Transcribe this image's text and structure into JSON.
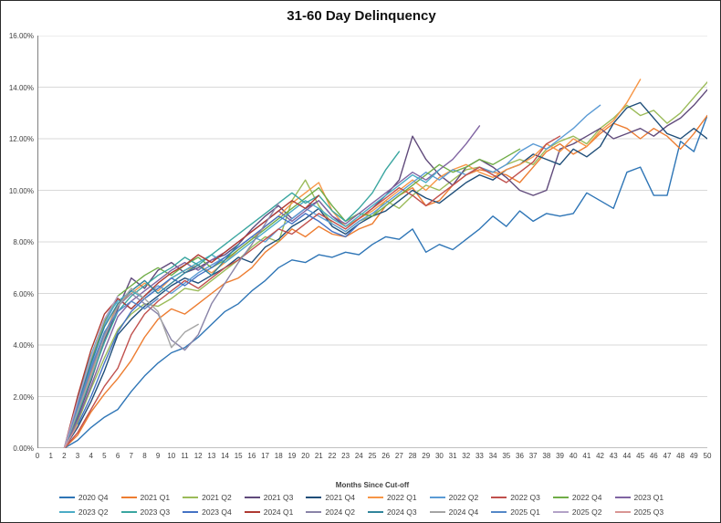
{
  "chart_data": {
    "type": "line",
    "title": "31-60 Day Delinquency",
    "xlabel": "Months Since Cut-off",
    "ylabel": "",
    "xlim": [
      0,
      50
    ],
    "ylim": [
      0,
      16
    ],
    "grid": "horizontal",
    "legend_position": "bottom",
    "y_ticks": [
      "0.00%",
      "2.00%",
      "4.00%",
      "6.00%",
      "8.00%",
      "10.00%",
      "12.00%",
      "14.00%",
      "16.00%"
    ],
    "x_ticks": [
      0,
      1,
      2,
      3,
      4,
      5,
      6,
      7,
      8,
      9,
      10,
      11,
      12,
      13,
      14,
      15,
      16,
      17,
      18,
      19,
      20,
      21,
      22,
      23,
      24,
      25,
      26,
      27,
      28,
      29,
      30,
      31,
      32,
      33,
      34,
      35,
      36,
      37,
      38,
      39,
      40,
      41,
      42,
      43,
      44,
      45,
      46,
      47,
      48,
      49,
      50
    ],
    "value_unit": "percent",
    "series": [
      {
        "name": "2020 Q4",
        "color": "#2E75B6",
        "start_month": 2,
        "values": [
          0,
          0.3,
          0.8,
          1.2,
          1.5,
          2.2,
          2.8,
          3.3,
          3.7,
          3.9,
          4.3,
          4.8,
          5.3,
          5.6,
          6.1,
          6.5,
          7.0,
          7.3,
          7.2,
          7.5,
          7.4,
          7.6,
          7.5,
          7.9,
          8.2,
          8.1,
          8.5,
          7.6,
          7.9,
          7.7,
          8.1,
          8.5,
          9.0,
          8.6,
          9.2,
          8.8,
          9.1,
          9.0,
          9.1,
          9.9,
          9.6,
          9.3,
          10.7,
          10.9,
          9.8,
          9.8,
          11.9,
          11.5,
          12.9
        ]
      },
      {
        "name": "2021 Q1",
        "color": "#ED7D31",
        "start_month": 2,
        "values": [
          0,
          0.5,
          1.4,
          2.1,
          2.7,
          3.4,
          4.3,
          5.0,
          5.4,
          5.2,
          5.6,
          6.0,
          6.4,
          6.6,
          7.0,
          7.6,
          8.0,
          8.5,
          8.2,
          8.6,
          8.3,
          8.2,
          8.5,
          8.7,
          9.4,
          9.8,
          10.1,
          9.4,
          9.6,
          10.2,
          10.6,
          10.8,
          10.7,
          10.6,
          10.3,
          10.9,
          11.5,
          11.8,
          11.4,
          11.7,
          12.2,
          12.6,
          12.4,
          12.0,
          12.4,
          12.1,
          11.6,
          12.2,
          12.9
        ]
      },
      {
        "name": "2021 Q2",
        "color": "#9BBB59",
        "start_month": 2,
        "values": [
          0,
          1.0,
          2.3,
          3.5,
          4.6,
          5.2,
          5.6,
          5.5,
          5.8,
          6.2,
          6.1,
          6.5,
          6.9,
          7.3,
          7.8,
          8.2,
          8.0,
          9.6,
          10.4,
          9.4,
          8.7,
          8.4,
          8.8,
          9.0,
          9.6,
          9.3,
          9.8,
          10.2,
          10.0,
          10.4,
          10.8,
          10.9,
          10.7,
          11.0,
          11.2,
          11.0,
          11.6,
          11.9,
          12.1,
          11.8,
          12.4,
          12.8,
          13.3,
          12.9,
          13.1,
          12.6,
          13.0,
          13.6,
          14.2
        ]
      },
      {
        "name": "2021 Q3",
        "color": "#604A7B",
        "start_month": 2,
        "values": [
          0,
          1.2,
          2.6,
          4.2,
          5.4,
          6.6,
          6.2,
          6.9,
          7.2,
          6.8,
          7.0,
          7.3,
          7.5,
          7.9,
          8.5,
          9.0,
          9.4,
          8.9,
          9.3,
          9.6,
          9.0,
          8.6,
          8.9,
          9.3,
          9.8,
          10.4,
          12.1,
          11.2,
          10.6,
          10.2,
          10.9,
          11.2,
          10.9,
          10.5,
          10.0,
          9.8,
          10.0,
          11.6,
          11.8,
          12.1,
          12.4,
          12.0,
          12.2,
          12.4,
          12.1,
          12.5,
          12.8,
          13.3,
          13.9
        ]
      },
      {
        "name": "2021 Q4",
        "color": "#1F4E79",
        "start_month": 2,
        "values": [
          0,
          0.8,
          1.8,
          3.0,
          4.4,
          5.0,
          5.5,
          5.9,
          6.3,
          6.6,
          6.4,
          6.7,
          7.0,
          7.4,
          7.2,
          7.8,
          8.1,
          8.6,
          8.9,
          9.3,
          8.6,
          8.3,
          8.7,
          9.0,
          9.2,
          9.6,
          10.0,
          9.7,
          9.5,
          9.9,
          10.3,
          10.6,
          10.4,
          10.8,
          11.0,
          11.4,
          11.2,
          11.0,
          11.6,
          11.3,
          11.7,
          12.6,
          13.2,
          13.4,
          12.8,
          12.2,
          12.0,
          12.4,
          12.0
        ]
      },
      {
        "name": "2022 Q1",
        "color": "#F79646",
        "start_month": 2,
        "values": [
          0,
          1.4,
          2.9,
          4.4,
          5.6,
          6.0,
          6.4,
          6.1,
          6.6,
          6.9,
          7.1,
          6.8,
          7.2,
          7.7,
          8.1,
          8.6,
          9.0,
          9.5,
          9.9,
          10.3,
          9.2,
          8.6,
          8.9,
          9.2,
          9.6,
          10.0,
          10.4,
          10.0,
          10.5,
          10.8,
          11.0,
          10.7,
          10.5,
          10.8,
          11.0,
          11.3,
          11.8,
          11.5,
          12.0,
          11.7,
          12.3,
          12.7,
          13.4,
          14.3
        ]
      },
      {
        "name": "2022 Q2",
        "color": "#5B9BD5",
        "start_month": 2,
        "values": [
          0,
          1.6,
          3.2,
          4.8,
          5.8,
          5.4,
          5.9,
          6.3,
          6.0,
          6.4,
          6.8,
          7.1,
          7.4,
          7.8,
          8.2,
          8.0,
          8.5,
          8.9,
          9.3,
          9.0,
          8.7,
          8.4,
          8.8,
          9.1,
          9.5,
          9.9,
          10.3,
          10.7,
          10.4,
          10.8,
          10.6,
          10.9,
          10.7,
          11.0,
          11.5,
          11.8,
          11.6,
          12.0,
          12.4,
          12.9,
          13.3
        ]
      },
      {
        "name": "2022 Q3",
        "color": "#C0504D",
        "start_month": 2,
        "values": [
          0,
          0.6,
          1.5,
          2.4,
          3.1,
          4.4,
          5.2,
          5.7,
          6.1,
          6.5,
          6.2,
          6.6,
          7.0,
          7.3,
          7.7,
          8.1,
          8.5,
          8.3,
          8.7,
          9.1,
          8.8,
          8.5,
          8.9,
          9.3,
          9.7,
          10.1,
          9.8,
          9.4,
          9.8,
          10.2,
          10.6,
          10.9,
          10.6,
          10.3,
          10.7,
          11.1,
          11.8,
          12.1
        ]
      },
      {
        "name": "2022 Q4",
        "color": "#70AD47",
        "start_month": 2,
        "values": [
          0,
          1.8,
          3.4,
          4.9,
          5.9,
          6.3,
          6.7,
          7.0,
          6.7,
          7.1,
          7.4,
          7.0,
          7.3,
          7.7,
          8.1,
          8.5,
          8.9,
          9.3,
          9.7,
          10.1,
          9.4,
          8.8,
          9.1,
          9.0,
          9.4,
          9.8,
          10.2,
          10.6,
          11.0,
          10.7,
          10.9,
          11.2,
          11.0,
          11.3,
          11.6
        ]
      },
      {
        "name": "2023 Q1",
        "color": "#8064A2",
        "start_month": 2,
        "values": [
          0,
          1.1,
          2.4,
          3.8,
          5.1,
          5.7,
          6.1,
          6.5,
          6.9,
          7.2,
          6.9,
          7.3,
          7.6,
          8.0,
          8.4,
          8.8,
          9.2,
          8.8,
          9.2,
          9.6,
          9.0,
          8.7,
          9.1,
          9.5,
          9.9,
          10.3,
          10.7,
          10.4,
          10.8,
          11.2,
          11.8,
          12.5
        ]
      },
      {
        "name": "2023 Q2",
        "color": "#4BACC6",
        "start_month": 2,
        "values": [
          0,
          1.9,
          3.6,
          5.0,
          5.7,
          6.1,
          5.8,
          6.2,
          6.6,
          6.9,
          7.2,
          7.5,
          7.2,
          7.6,
          8.0,
          8.4,
          8.8,
          9.2,
          9.6,
          9.3,
          8.9,
          8.6,
          9.0,
          9.4,
          9.8,
          10.2,
          10.6,
          10.3,
          10.8
        ]
      },
      {
        "name": "2023 Q3",
        "color": "#3AA6A0",
        "start_month": 2,
        "values": [
          0,
          1.3,
          2.7,
          4.1,
          5.3,
          5.9,
          6.3,
          6.7,
          7.0,
          7.4,
          7.1,
          7.5,
          7.9,
          8.3,
          8.7,
          9.1,
          9.5,
          9.9,
          9.5,
          9.8,
          9.2,
          8.8,
          9.3,
          9.9,
          10.8,
          11.5
        ]
      },
      {
        "name": "2023 Q4",
        "color": "#4472C4",
        "start_month": 2,
        "values": [
          0,
          0.9,
          2.0,
          3.3,
          4.5,
          5.3,
          5.8,
          6.2,
          6.6,
          6.3,
          6.7,
          7.0,
          7.4,
          7.8,
          8.2,
          8.6,
          9.0,
          8.7,
          9.1,
          8.8,
          8.4,
          8.2,
          8.7
        ]
      },
      {
        "name": "2024 Q1",
        "color": "#AF3A32",
        "start_month": 2,
        "values": [
          0,
          2.0,
          3.8,
          5.2,
          5.8,
          5.4,
          5.9,
          6.4,
          6.8,
          7.1,
          7.5,
          7.2,
          7.6,
          8.0,
          8.4,
          8.8,
          9.2,
          9.6,
          9.3,
          9.8
        ]
      },
      {
        "name": "2024 Q2",
        "color": "#8A84A8",
        "start_month": 2,
        "values": [
          0,
          1.5,
          3.0,
          4.4,
          5.5,
          6.0,
          5.6,
          5.2,
          4.2,
          3.8,
          4.4,
          5.6,
          6.4,
          7.2,
          7.9,
          8.7,
          9.5
        ]
      },
      {
        "name": "2024 Q3",
        "color": "#31859B",
        "start_month": 2,
        "values": [
          0,
          1.7,
          3.3,
          4.7,
          5.6,
          6.1,
          6.5,
          6.0,
          6.4,
          6.8,
          7.1,
          6.7,
          7.3,
          7.9
        ]
      },
      {
        "name": "2024 Q4",
        "color": "#A5A5A5",
        "start_month": 2,
        "values": [
          0,
          1.4,
          2.8,
          4.3,
          5.5,
          6.2,
          5.8,
          5.3,
          3.9,
          4.5,
          4.8
        ]
      },
      {
        "name": "2025 Q1",
        "color": "#5488C7",
        "start_month": 2,
        "values": [
          0,
          1.6,
          3.1,
          4.5,
          5.3,
          5.7,
          5.4,
          5.8
        ]
      },
      {
        "name": "2025 Q2",
        "color": "#B3A2C7",
        "start_month": 2,
        "values": [
          0,
          1.8,
          3.5,
          5.0,
          5.9
        ]
      },
      {
        "name": "2025 Q3",
        "color": "#D99694",
        "start_month": 2,
        "values": [
          0,
          0.9
        ]
      }
    ]
  }
}
